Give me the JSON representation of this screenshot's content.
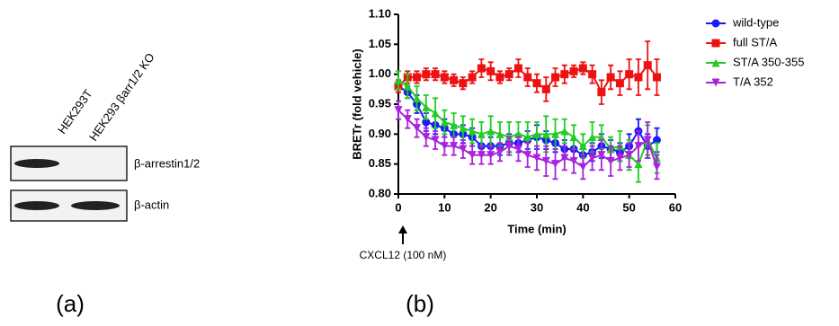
{
  "panels": {
    "a": "(a)",
    "b": "(b)"
  },
  "blot": {
    "lanes": [
      "HEK293T",
      "HEK293 βarr1/2 KO"
    ],
    "bands": [
      "β-arrestin1/2",
      "β-actin"
    ]
  },
  "chart_data": {
    "type": "line",
    "x_label": "Time (min)",
    "y_label": "BRETr (fold vehicle)",
    "annotation": "CXCL12 (100 nM)",
    "x": [
      0,
      2,
      4,
      6,
      8,
      10,
      12,
      14,
      16,
      18,
      20,
      22,
      24,
      26,
      28,
      30,
      32,
      34,
      36,
      38,
      40,
      42,
      44,
      46,
      48,
      50,
      52,
      54,
      56
    ],
    "series": [
      {
        "name": "wild-type",
        "color": "#1a1aff",
        "marker": "circle",
        "values": [
          0.98,
          0.97,
          0.95,
          0.92,
          0.915,
          0.91,
          0.9,
          0.9,
          0.895,
          0.88,
          0.88,
          0.88,
          0.885,
          0.885,
          0.89,
          0.895,
          0.89,
          0.885,
          0.875,
          0.875,
          0.865,
          0.87,
          0.88,
          0.875,
          0.87,
          0.88,
          0.905,
          0.88,
          0.89
        ],
        "errors": [
          0.01,
          0.01,
          0.015,
          0.015,
          0.015,
          0.015,
          0.015,
          0.015,
          0.015,
          0.015,
          0.015,
          0.015,
          0.015,
          0.015,
          0.015,
          0.02,
          0.015,
          0.015,
          0.015,
          0.015,
          0.015,
          0.015,
          0.02,
          0.015,
          0.015,
          0.02,
          0.02,
          0.02,
          0.02
        ]
      },
      {
        "name": "full ST/A",
        "color": "#ee1111",
        "marker": "square",
        "values": [
          0.98,
          0.995,
          0.995,
          1.0,
          1.0,
          0.995,
          0.99,
          0.985,
          0.995,
          1.01,
          1.005,
          0.995,
          1.0,
          1.01,
          0.995,
          0.985,
          0.975,
          0.995,
          1.0,
          1.005,
          1.01,
          1.0,
          0.97,
          0.995,
          0.985,
          1.0,
          0.995,
          1.015,
          0.995
        ],
        "errors": [
          0.01,
          0.01,
          0.01,
          0.01,
          0.01,
          0.01,
          0.01,
          0.01,
          0.01,
          0.015,
          0.015,
          0.01,
          0.01,
          0.015,
          0.015,
          0.015,
          0.02,
          0.015,
          0.015,
          0.01,
          0.01,
          0.015,
          0.02,
          0.02,
          0.02,
          0.025,
          0.03,
          0.04,
          0.03
        ]
      },
      {
        "name": "ST/A 350-355",
        "color": "#22cc22",
        "marker": "triangle-up",
        "values": [
          0.99,
          0.98,
          0.96,
          0.945,
          0.935,
          0.92,
          0.915,
          0.91,
          0.905,
          0.9,
          0.905,
          0.9,
          0.895,
          0.9,
          0.895,
          0.9,
          0.9,
          0.9,
          0.905,
          0.895,
          0.88,
          0.895,
          0.895,
          0.875,
          0.88,
          0.865,
          0.85,
          0.89,
          0.86
        ],
        "errors": [
          0.015,
          0.02,
          0.02,
          0.02,
          0.025,
          0.02,
          0.02,
          0.02,
          0.02,
          0.02,
          0.025,
          0.02,
          0.025,
          0.02,
          0.025,
          0.02,
          0.03,
          0.025,
          0.02,
          0.02,
          0.02,
          0.025,
          0.02,
          0.02,
          0.025,
          0.025,
          0.03,
          0.025,
          0.025
        ]
      },
      {
        "name": "T/A 352",
        "color": "#aa22dd",
        "marker": "triangle-down",
        "values": [
          0.94,
          0.925,
          0.91,
          0.895,
          0.89,
          0.88,
          0.88,
          0.875,
          0.865,
          0.865,
          0.865,
          0.87,
          0.88,
          0.875,
          0.865,
          0.86,
          0.855,
          0.85,
          0.86,
          0.855,
          0.845,
          0.86,
          0.865,
          0.855,
          0.86,
          0.865,
          0.88,
          0.89,
          0.845
        ],
        "errors": [
          0.015,
          0.015,
          0.015,
          0.015,
          0.015,
          0.015,
          0.015,
          0.015,
          0.015,
          0.015,
          0.015,
          0.015,
          0.015,
          0.02,
          0.02,
          0.02,
          0.025,
          0.025,
          0.02,
          0.02,
          0.02,
          0.02,
          0.025,
          0.025,
          0.02,
          0.02,
          0.025,
          0.03,
          0.02
        ]
      }
    ],
    "xlim": [
      0,
      60
    ],
    "xticks": [
      0,
      10,
      20,
      30,
      40,
      50,
      60
    ],
    "ylim": [
      0.8,
      1.1
    ],
    "yticks": [
      {
        "value": 0.8,
        "label": "0.80"
      },
      0.85,
      {
        "value": 0.9,
        "label": "0.90"
      },
      0.95,
      {
        "value": 1.0,
        "label": "1.00"
      },
      1.05,
      {
        "value": 1.1,
        "label": "1.10"
      }
    ],
    "legend": "right"
  }
}
